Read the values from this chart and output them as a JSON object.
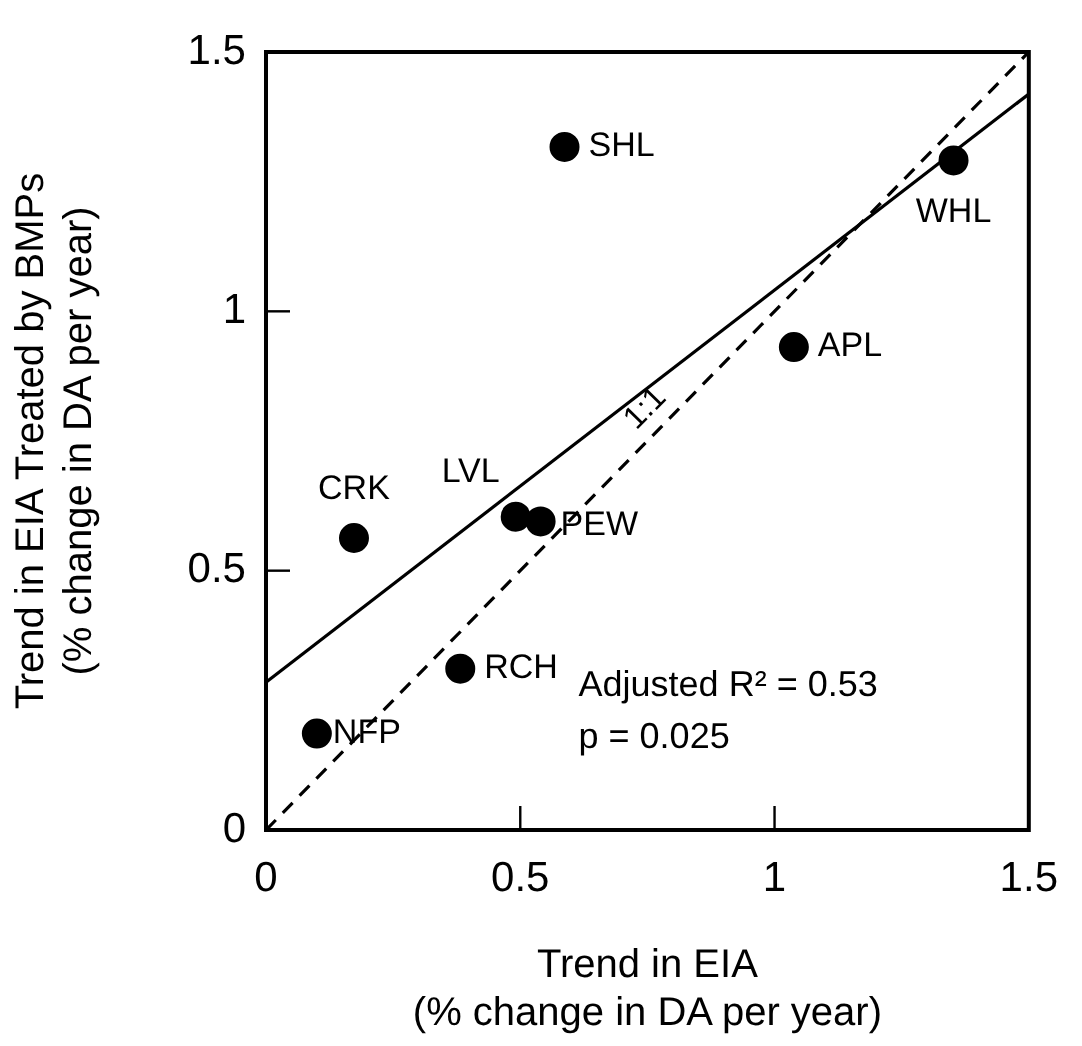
{
  "chart_data": {
    "type": "scatter",
    "xlabel": "Trend in EIA\n(% change in DA per year)",
    "ylabel": "Trend in EIA Treated by BMPs\n(% change in DA per year)",
    "series": [
      {
        "type": "scatter",
        "color": "#000000",
        "x": [
          0.587,
          1.352,
          1.038,
          0.491,
          0.54,
          0.173,
          0.382,
          0.1
        ],
        "values": [
          1.317,
          1.291,
          0.931,
          0.604,
          0.595,
          0.563,
          0.311,
          0.186
        ]
      },
      {
        "type": "line",
        "color": "#000000",
        "line_style": "solid",
        "marker": "none",
        "x": [
          0,
          1.5
        ],
        "values": [
          0.285,
          1.419
        ]
      },
      {
        "type": "line",
        "name": "1:1",
        "color": "#000000",
        "line_style": "dashed",
        "marker": "none",
        "x": [
          0,
          1.5
        ],
        "values": [
          0,
          1.5
        ]
      }
    ],
    "annotations": [
      {
        "text": "SHL",
        "x": 0.587,
        "y": 1.317
      },
      {
        "text": "WHL",
        "x": 1.352,
        "y": 1.291
      },
      {
        "text": "APL",
        "x": 1.038,
        "y": 0.931
      },
      {
        "text": "LVL",
        "x": 0.491,
        "y": 0.604
      },
      {
        "text": "PEW",
        "x": 0.54,
        "y": 0.595
      },
      {
        "text": "CRK",
        "x": 0.173,
        "y": 0.563
      },
      {
        "text": "RCH",
        "x": 0.382,
        "y": 0.311
      },
      {
        "text": "NFP",
        "x": 0.1,
        "y": 0.186
      },
      "Adjusted R² = 0.53",
      "p = 0.025"
    ],
    "xlim": [
      0,
      1.5
    ],
    "ylim": [
      0,
      1.5
    ],
    "xticks": [
      0,
      0.5,
      1,
      1.5
    ],
    "yticks": [
      0,
      0.5,
      1,
      1.5
    ],
    "grid": false,
    "legend": false,
    "marker": "circle"
  }
}
